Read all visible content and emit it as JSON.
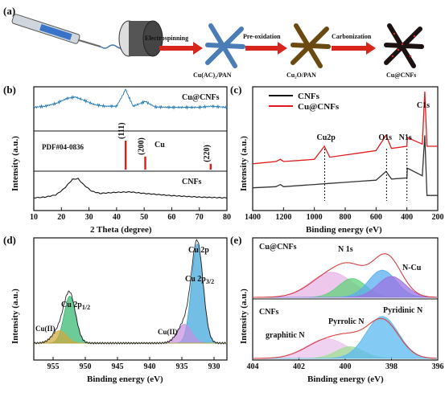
{
  "figure": {
    "panels": {
      "a": {
        "label": "(a)",
        "steps": [
          "Electrospinning",
          "Pre-oxidation",
          "Carbonization"
        ],
        "products": [
          "Cu(AC)₂/PAN",
          "Cu₂O/PAN",
          "Cu@CNFs"
        ]
      },
      "b": {
        "label": "(b)",
        "top_label": "Cu@CNFs",
        "ref_label": "PDF#04-0836",
        "ref_material": "Cu",
        "peaks": [
          "(111)",
          "(200)",
          "(220)"
        ],
        "bottom_label": "CNFs"
      },
      "c": {
        "label": "(c)",
        "legend": [
          "CNFs",
          "Cu@CNFs"
        ],
        "peak_labels": [
          "Cu2p",
          "O1s",
          "N1s",
          "C1s"
        ]
      },
      "d": {
        "label": "(d)",
        "title": "Cu 2p",
        "peak_labels": [
          "Cu 2p1/2",
          "Cu 2p3/2",
          "Cu(II)",
          "Cu(II)"
        ]
      },
      "e": {
        "label": "(e)",
        "top_title": "Cu@CNFs",
        "top_sub": "N 1s",
        "top_peak": "N-Cu",
        "bottom_title": "CNFs",
        "bottom_peaks": [
          "graphitic N",
          "Pyrrolic N",
          "Pyridinic N"
        ]
      }
    }
  },
  "chart_data": [
    {
      "type": "line",
      "panel": "b",
      "xlabel": "2 Theta (degree)",
      "ylabel": "Intensity (a.u.)",
      "xlim": [
        10,
        80
      ],
      "x_ticks": [
        "10",
        "20",
        "30",
        "40",
        "50",
        "60",
        "70",
        "80"
      ],
      "series": [
        {
          "name": "Cu@CNFs",
          "x": [
            10,
            14,
            18,
            22,
            25,
            28,
            32,
            36,
            40,
            43.3,
            46,
            50.4,
            54,
            60,
            70,
            74.1,
            80
          ],
          "y": [
            0.55,
            0.58,
            0.65,
            0.78,
            0.82,
            0.74,
            0.62,
            0.58,
            0.58,
            1.0,
            0.58,
            0.7,
            0.56,
            0.55,
            0.55,
            0.58,
            0.55
          ]
        },
        {
          "name": "CNFs",
          "x": [
            10,
            14,
            18,
            21,
            24,
            26,
            28,
            31,
            34,
            40,
            45,
            50,
            60,
            70,
            80
          ],
          "y": [
            0.3,
            0.32,
            0.38,
            0.55,
            0.8,
            0.82,
            0.66,
            0.48,
            0.42,
            0.45,
            0.46,
            0.42,
            0.36,
            0.32,
            0.3
          ]
        }
      ],
      "reference_peaks": [
        {
          "x": 43.3,
          "intensity": 1.0,
          "hkl": "(111)"
        },
        {
          "x": 50.4,
          "intensity": 0.45,
          "hkl": "(200)"
        },
        {
          "x": 74.1,
          "intensity": 0.2,
          "hkl": "(220)"
        }
      ]
    },
    {
      "type": "line",
      "panel": "c",
      "xlabel": "Binding energy (eV)",
      "ylabel": "Intensity (a.u.)",
      "xlim": [
        1400,
        200
      ],
      "x_ticks": [
        "1400",
        "1200",
        "1000",
        "800",
        "600",
        "400",
        "200"
      ],
      "series": [
        {
          "name": "Cu@CNFs",
          "x": [
            1400,
            1250,
            1220,
            1200,
            1000,
            935,
            900,
            800,
            700,
            600,
            535,
            500,
            400,
            398,
            300,
            284,
            270,
            200
          ],
          "y": [
            0.34,
            0.36,
            0.38,
            0.36,
            0.38,
            0.5,
            0.4,
            0.42,
            0.44,
            0.46,
            0.6,
            0.48,
            0.5,
            0.58,
            0.52,
            1.0,
            0.5,
            0.5
          ]
        },
        {
          "name": "CNFs",
          "x": [
            1400,
            1250,
            1220,
            1200,
            1000,
            900,
            800,
            700,
            600,
            535,
            500,
            400,
            398,
            300,
            284,
            270,
            200
          ],
          "y": [
            0.12,
            0.13,
            0.15,
            0.13,
            0.15,
            0.16,
            0.17,
            0.18,
            0.19,
            0.27,
            0.2,
            0.21,
            0.3,
            0.23,
            0.6,
            0.05,
            0.05
          ]
        }
      ],
      "markers": [
        {
          "label": "Cu2p",
          "x": 933
        },
        {
          "label": "O1s",
          "x": 532
        },
        {
          "label": "N1s",
          "x": 400
        },
        {
          "label": "C1s",
          "x": 284
        }
      ]
    },
    {
      "type": "area",
      "panel": "d",
      "xlabel": "Binding energy (eV)",
      "ylabel": "Intensity (a.u.)",
      "xlim": [
        958,
        928
      ],
      "x_ticks": [
        "955",
        "950",
        "945",
        "940",
        "935",
        "930"
      ],
      "components": [
        {
          "name": "Cu 2p3/2",
          "center": 932.6,
          "height": 0.95,
          "width": 0.9,
          "color": "#36a3d9"
        },
        {
          "name": "Cu(II)",
          "center": 934.6,
          "height": 0.18,
          "width": 1.1,
          "color": "#c68ee0"
        },
        {
          "name": "Cu 2p1/2",
          "center": 952.4,
          "height": 0.45,
          "width": 0.9,
          "color": "#2fb56b"
        },
        {
          "name": "Cu(II)",
          "center": 954.0,
          "height": 0.12,
          "width": 1.1,
          "color": "#d2a73a"
        }
      ],
      "baseline": 0.1
    },
    {
      "type": "area",
      "panel": "e",
      "xlabel": "Binding energy (eV)",
      "ylabel": "Intensity (a.u.)",
      "xlim": [
        404,
        396
      ],
      "x_ticks": [
        "404",
        "402",
        "400",
        "398",
        "396"
      ],
      "upper": [
        {
          "name": "Pyrrolic N",
          "center": 400.6,
          "height": 0.6,
          "width": 0.9,
          "color": "#e7b4e6"
        },
        {
          "name": "graphitic N",
          "center": 399.7,
          "height": 0.45,
          "width": 0.6,
          "color": "#5fd17a"
        },
        {
          "name": "Pyridinic N",
          "center": 398.4,
          "height": 0.65,
          "width": 0.6,
          "color": "#5aaef0"
        },
        {
          "name": "N-Cu",
          "center": 398.0,
          "height": 0.5,
          "width": 0.6,
          "color": "#9b73e0"
        }
      ],
      "lower": [
        {
          "name": "graphitic N",
          "center": 400.8,
          "height": 0.42,
          "width": 0.9,
          "color": "#eac3ee"
        },
        {
          "name": "Pyrrolic N",
          "center": 399.8,
          "height": 0.25,
          "width": 0.6,
          "color": "#9de092"
        },
        {
          "name": "Pyridinic N",
          "center": 398.4,
          "height": 0.9,
          "width": 0.7,
          "color": "#5ab8f2"
        }
      ]
    }
  ]
}
